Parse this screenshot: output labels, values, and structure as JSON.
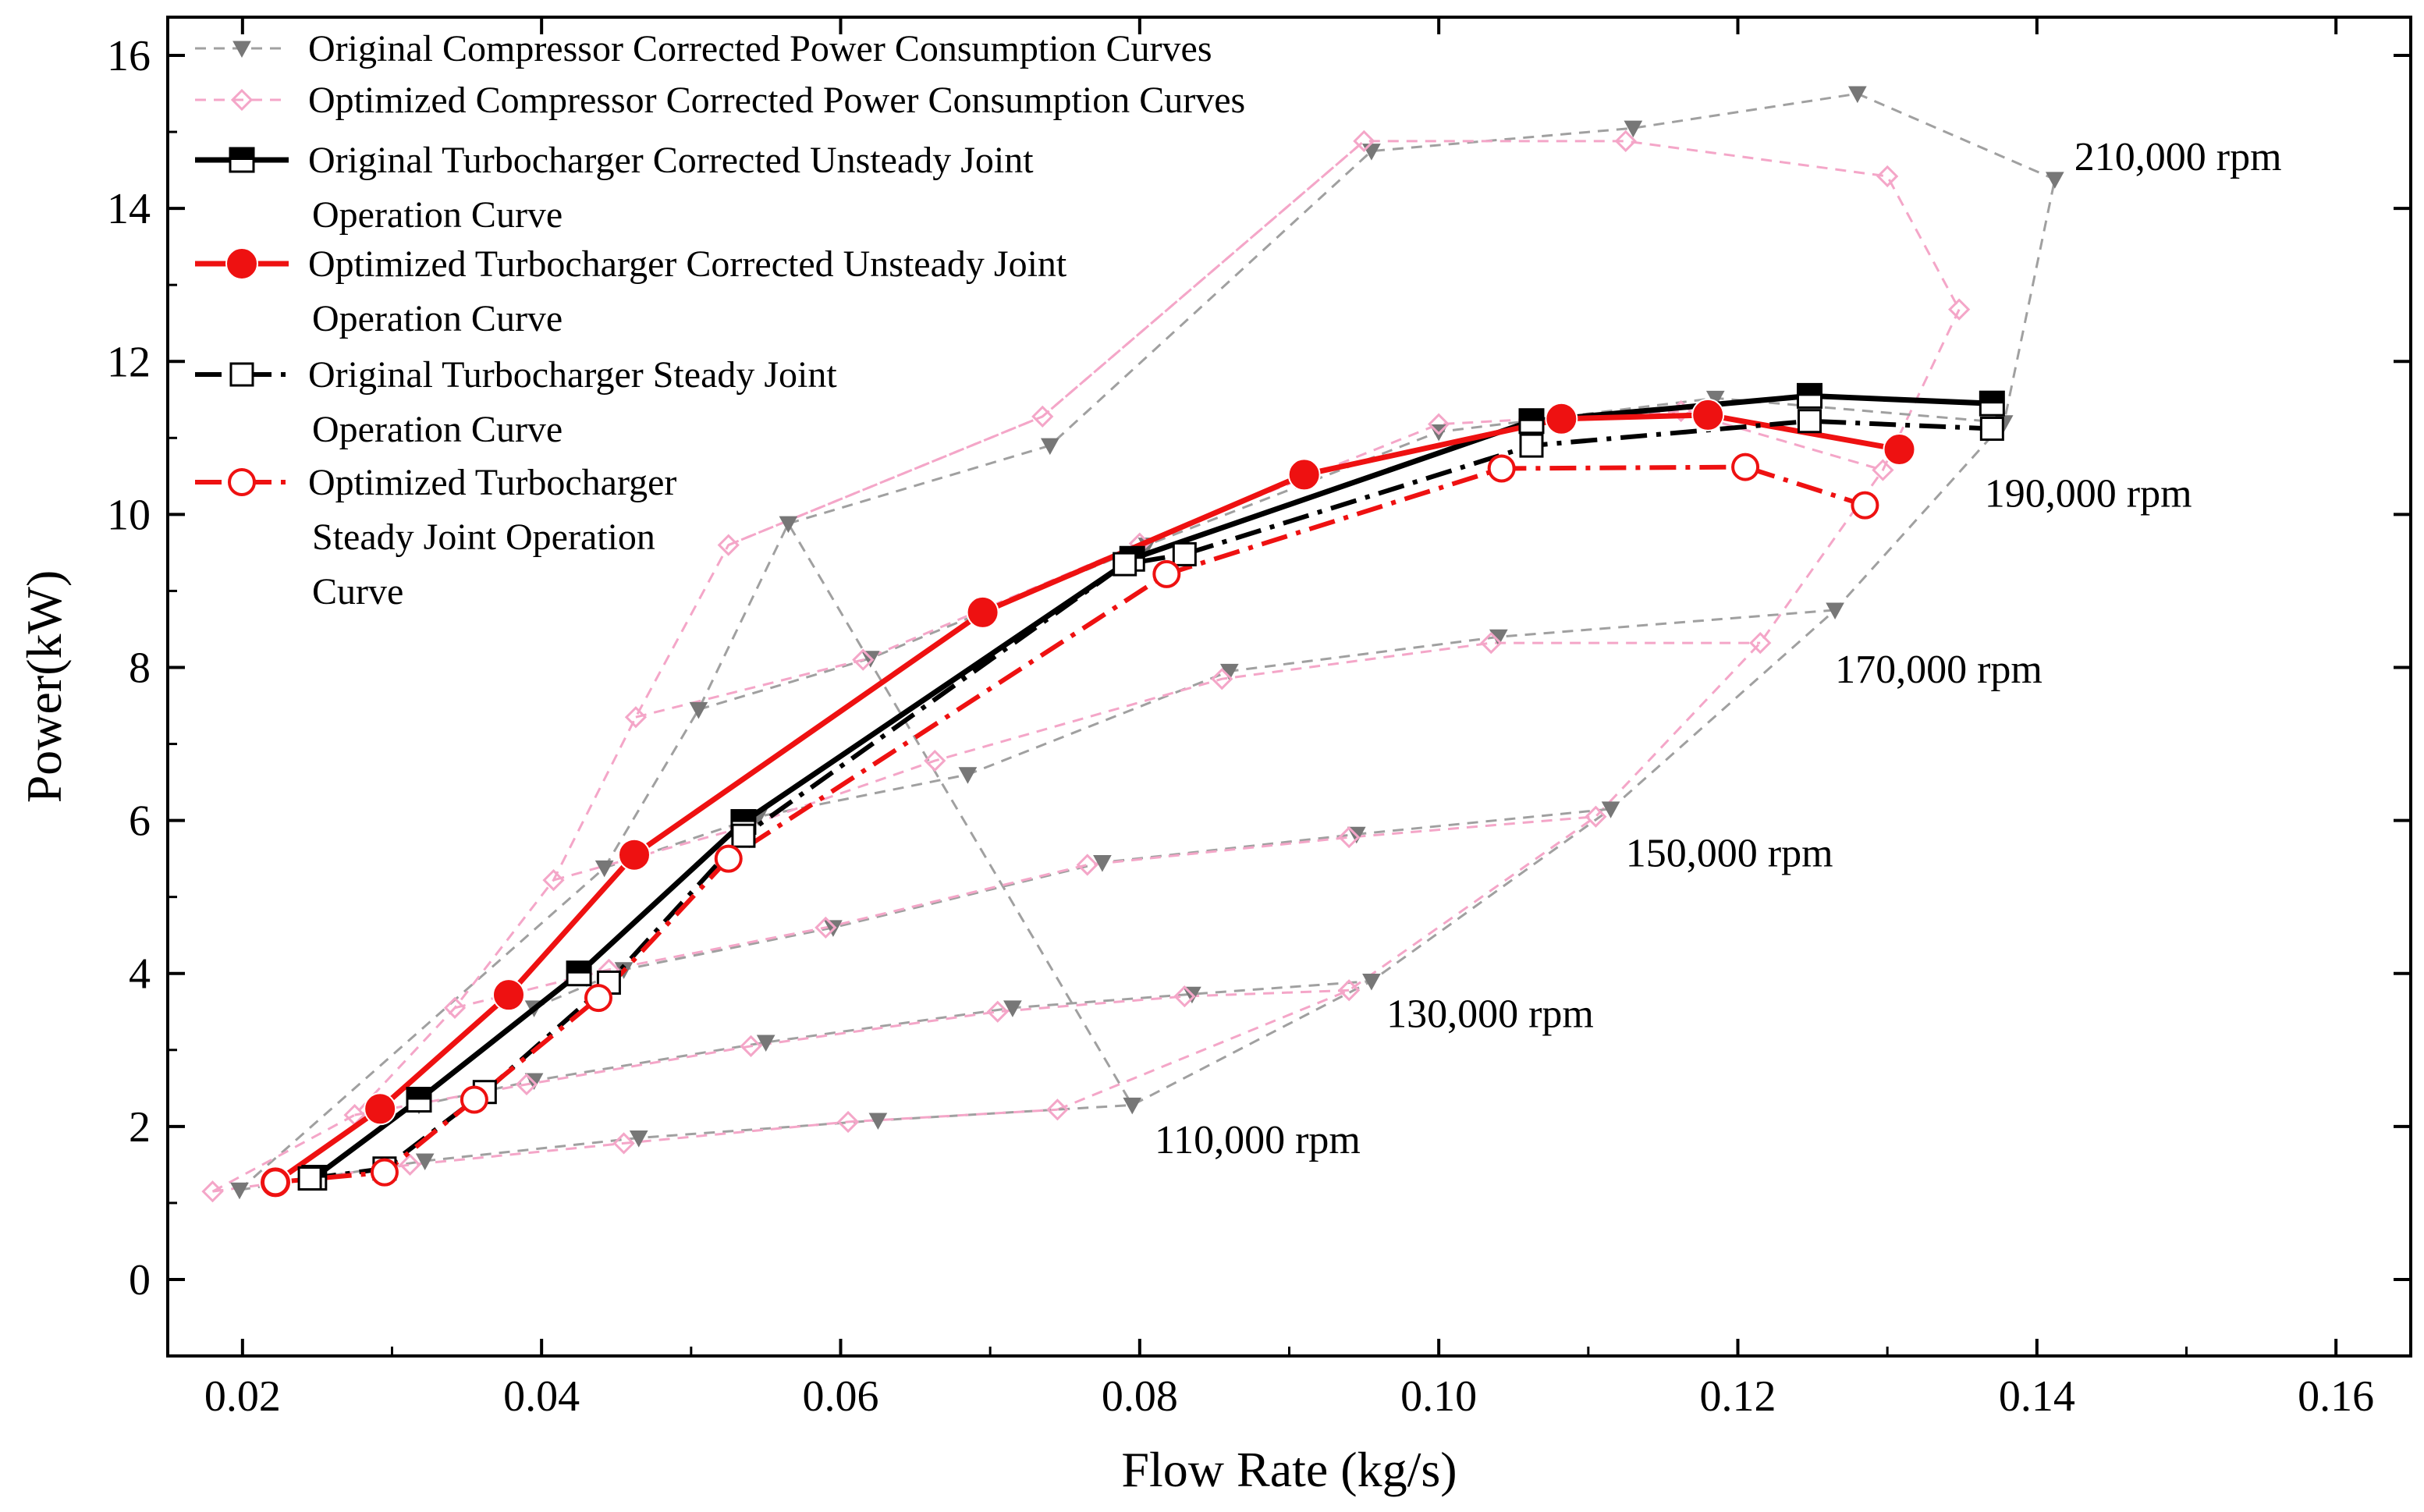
{
  "chart_data": {
    "type": "line",
    "xlabel": "Flow Rate (kg/s)",
    "ylabel": "Power(kW)",
    "xlim": [
      0.015,
      0.165
    ],
    "ylim": [
      -1,
      16.5
    ],
    "xticks": [
      0.02,
      0.04,
      0.06,
      0.08,
      0.1,
      0.12,
      0.14,
      0.16
    ],
    "xtick_labels": [
      "0.02",
      "0.04",
      "0.06",
      "0.08",
      "0.10",
      "0.12",
      "0.14",
      "0.16"
    ],
    "yticks": [
      0,
      2,
      4,
      6,
      8,
      10,
      12,
      14,
      16
    ],
    "ytick_labels": [
      "0",
      "2",
      "4",
      "6",
      "8",
      "10",
      "12",
      "14",
      "16"
    ],
    "grid": false,
    "legend_position": "top-left",
    "colors": {
      "orig_map": "#a0a0a0",
      "opt_map": "#f4a6c8",
      "orig_unsteady": "#000000",
      "opt_unsteady": "#ee1111",
      "orig_steady": "#000000",
      "opt_steady": "#ee1111"
    },
    "legend": [
      {
        "key": "orig_map",
        "label": "Original Compressor Corrected Power Consumption Curves"
      },
      {
        "key": "opt_map",
        "label": "Optimized Compressor Corrected Power Consumption Curves"
      },
      {
        "key": "orig_unsteady",
        "label": [
          "Original Turbocharger Corrected Unsteady Joint",
          "Operation Curve"
        ]
      },
      {
        "key": "opt_unsteady",
        "label": [
          "Optimized Turbocharger Corrected Unsteady Joint",
          "Operation Curve"
        ]
      },
      {
        "key": "orig_steady",
        "label": [
          "Original Turbocharger Steady Joint",
          "Operation Curve"
        ]
      },
      {
        "key": "opt_steady",
        "label": [
          "Optimized Turbocharger",
          "Steady Joint Operation",
          "Curve"
        ]
      }
    ],
    "annotations": [
      {
        "text": "210,000 rpm",
        "x": 0.1425,
        "y": 14.5
      },
      {
        "text": "190,000 rpm",
        "x": 0.1365,
        "y": 10.1
      },
      {
        "text": "170,000 rpm",
        "x": 0.1265,
        "y": 7.8
      },
      {
        "text": "150,000 rpm",
        "x": 0.1125,
        "y": 5.4
      },
      {
        "text": "130,000 rpm",
        "x": 0.0965,
        "y": 3.3
      },
      {
        "text": "110,000 rpm",
        "x": 0.081,
        "y": 1.65
      }
    ],
    "compressor_maps": {
      "original": [
        {
          "speed": "110,000 rpm",
          "x": [
            0.0198,
            0.0322,
            0.0465,
            0.0625,
            0.0795
          ],
          "y": [
            1.17,
            1.55,
            1.85,
            2.08,
            2.28
          ]
        },
        {
          "speed": "130,000 rpm",
          "x": [
            0.0318,
            0.0395,
            0.055,
            0.0715,
            0.0835,
            0.0955
          ],
          "y": [
            2.28,
            2.6,
            3.1,
            3.55,
            3.73,
            3.9
          ]
        },
        {
          "speed": "150,000 rpm",
          "x": [
            0.0395,
            0.0455,
            0.0595,
            0.0775,
            0.0945,
            0.1115
          ],
          "y": [
            3.55,
            4.05,
            4.6,
            5.45,
            5.82,
            6.15
          ]
        },
        {
          "speed": "170,000 rpm",
          "x": [
            0.0442,
            0.0545,
            0.0685,
            0.086,
            0.104,
            0.1265
          ],
          "y": [
            5.38,
            6.05,
            6.6,
            7.95,
            8.4,
            8.75
          ]
        },
        {
          "speed": "190,000 rpm",
          "x": [
            0.0505,
            0.062,
            0.0805,
            0.1,
            0.1185,
            0.1378
          ],
          "y": [
            7.45,
            8.12,
            9.6,
            11.08,
            11.52,
            11.2
          ]
        },
        {
          "speed": "210,000 rpm",
          "x": [
            0.0565,
            0.074,
            0.0955,
            0.113,
            0.128,
            0.1412
          ],
          "y": [
            9.88,
            10.9,
            14.75,
            15.05,
            15.5,
            14.38
          ]
        }
      ],
      "original_envelope": {
        "x": [
          0.0198,
          0.0442,
          0.0505,
          0.0565,
          0.0795,
          0.0955,
          0.1115,
          0.1265,
          0.1378,
          0.1412
        ],
        "y": [
          1.17,
          5.38,
          7.45,
          9.88,
          2.28,
          3.9,
          6.15,
          8.75,
          11.2,
          14.38
        ]
      },
      "optimized": [
        {
          "speed": "110,000 rpm",
          "x": [
            0.018,
            0.0312,
            0.0455,
            0.0605,
            0.0745
          ],
          "y": [
            1.15,
            1.5,
            1.78,
            2.06,
            2.22
          ]
        },
        {
          "speed": "130,000 rpm",
          "x": [
            0.0275,
            0.039,
            0.054,
            0.0705,
            0.083,
            0.094
          ],
          "y": [
            2.15,
            2.55,
            3.05,
            3.5,
            3.7,
            3.78
          ]
        },
        {
          "speed": "150,000 rpm",
          "x": [
            0.0342,
            0.0445,
            0.059,
            0.0765,
            0.094,
            0.1105
          ],
          "y": [
            3.55,
            4.05,
            4.6,
            5.42,
            5.78,
            6.05
          ]
        },
        {
          "speed": "170,000 rpm",
          "x": [
            0.0408,
            0.0533,
            0.0663,
            0.0855,
            0.1035,
            0.1215
          ],
          "y": [
            5.22,
            5.9,
            6.78,
            7.85,
            8.32,
            8.32
          ]
        },
        {
          "speed": "190,000 rpm",
          "x": [
            0.0463,
            0.0615,
            0.08,
            0.1,
            0.1162,
            0.1297
          ],
          "y": [
            7.35,
            8.1,
            9.62,
            11.18,
            11.35,
            10.58
          ]
        },
        {
          "speed": "210,000 rpm",
          "x": [
            0.0525,
            0.0735,
            0.095,
            0.1125,
            0.13,
            0.1348
          ],
          "y": [
            9.6,
            11.28,
            14.88,
            14.88,
            14.42,
            12.68
          ]
        }
      ],
      "optimized_envelope": {
        "x": [
          0.018,
          0.0275,
          0.0342,
          0.0408,
          0.0463,
          0.0525,
          0.0735,
          0.095
        ],
        "y": [
          1.15,
          2.15,
          3.55,
          5.22,
          7.35,
          9.6,
          11.28,
          14.88
        ]
      },
      "optimized_right_envelope": {
        "x": [
          0.0745,
          0.094,
          0.1105,
          0.1215,
          0.1297,
          0.1348
        ],
        "y": [
          2.22,
          3.78,
          6.05,
          8.32,
          10.58,
          12.68
        ]
      }
    },
    "series": [
      {
        "key": "orig_unsteady",
        "x": [
          0.0248,
          0.0318,
          0.0425,
          0.0535,
          0.0795,
          0.1062,
          0.1248,
          0.137
        ],
        "y": [
          1.33,
          2.35,
          4.0,
          5.98,
          9.42,
          11.22,
          11.55,
          11.45
        ]
      },
      {
        "key": "opt_unsteady",
        "x": [
          0.0222,
          0.0292,
          0.0378,
          0.0462,
          0.0695,
          0.091,
          0.1082,
          0.118,
          0.1308
        ],
        "y": [
          1.27,
          2.23,
          3.72,
          5.55,
          8.72,
          10.52,
          11.25,
          11.3,
          10.85
        ]
      },
      {
        "key": "orig_steady",
        "x": [
          0.0245,
          0.0295,
          0.0362,
          0.0445,
          0.0535,
          0.079,
          0.083,
          0.1062,
          0.1248,
          0.137
        ],
        "y": [
          1.32,
          1.45,
          2.45,
          3.88,
          5.8,
          9.35,
          9.48,
          10.9,
          11.22,
          11.12
        ]
      },
      {
        "key": "opt_steady",
        "x": [
          0.0222,
          0.0295,
          0.0355,
          0.0438,
          0.0525,
          0.0818,
          0.1042,
          0.1205,
          0.1285
        ],
        "y": [
          1.27,
          1.4,
          2.35,
          3.68,
          5.5,
          9.22,
          10.6,
          10.62,
          10.12
        ]
      }
    ]
  }
}
